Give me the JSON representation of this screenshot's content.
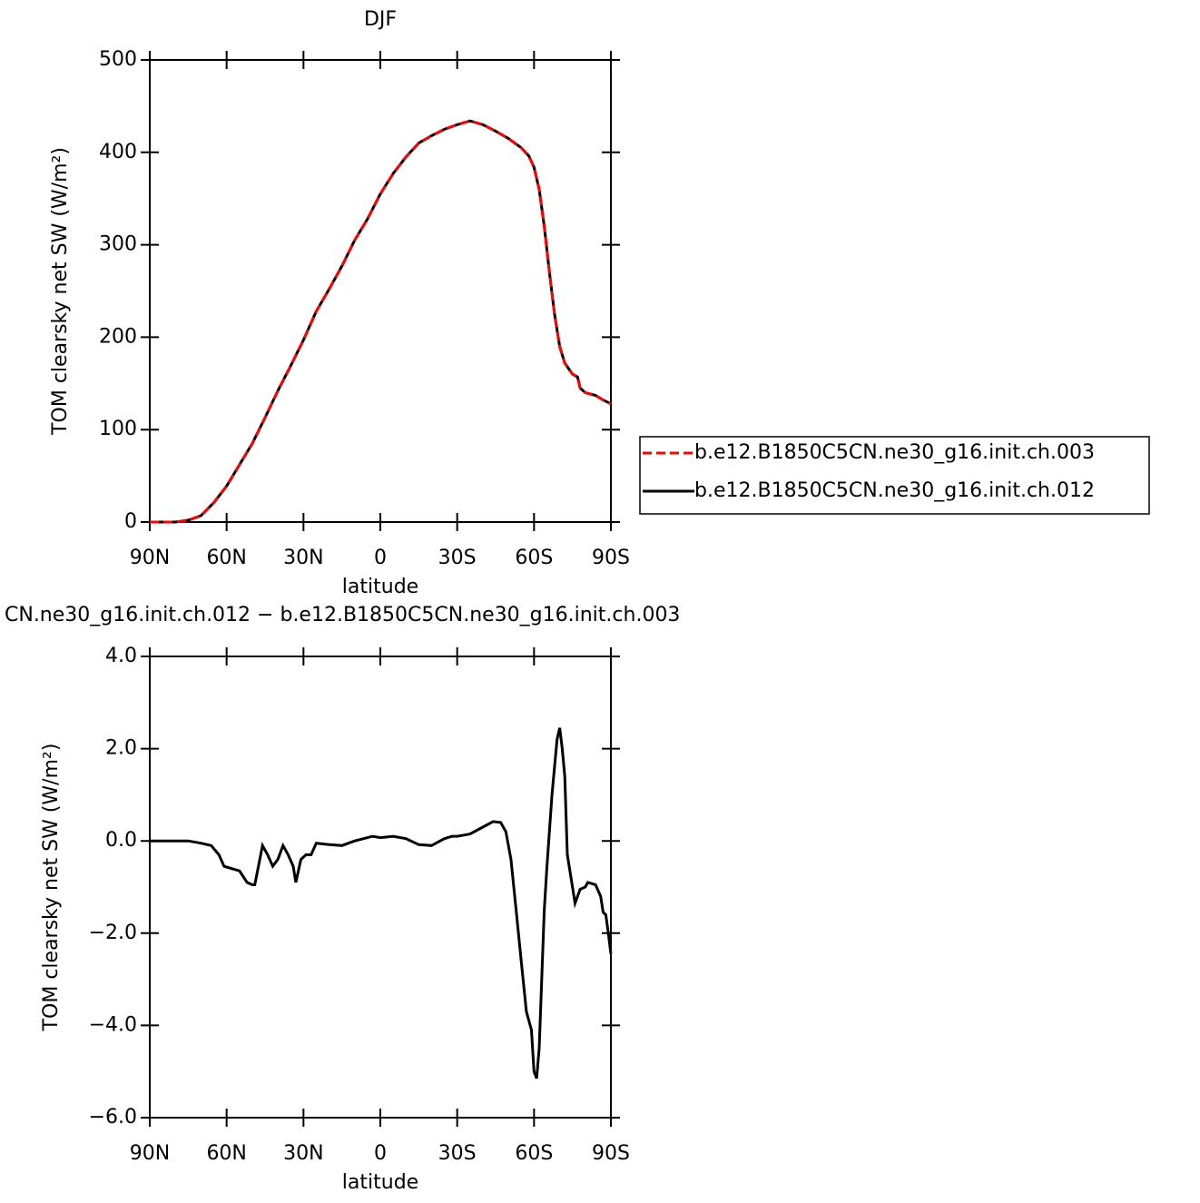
{
  "chart_data": [
    {
      "type": "line",
      "title": "DJF",
      "xlabel": "latitude",
      "ylabel": "TOM clearsky net SW (W/m²)",
      "x": [
        90,
        85,
        80,
        75,
        70,
        65,
        60,
        55,
        50,
        45,
        40,
        35,
        30,
        25,
        20,
        15,
        10,
        5,
        0,
        -5,
        -10,
        -15,
        -20,
        -25,
        -30,
        -35,
        -40,
        -45,
        -50,
        -55,
        -58,
        -60,
        -62,
        -64,
        -66,
        -68,
        -70,
        -72,
        -75,
        -77,
        -78,
        -80,
        -84,
        -87,
        -90
      ],
      "series": [
        {
          "name": "b.e12.B1850C5CN.ne30_g16.init.ch.003",
          "color": "#ff0000",
          "dash": true,
          "values": [
            0,
            0,
            0,
            2,
            7,
            21,
            39,
            62,
            85,
            113,
            142,
            169,
            197,
            228,
            252,
            277,
            305,
            328,
            355,
            377,
            395,
            410,
            418,
            425,
            430,
            434,
            430,
            423,
            415,
            405,
            396,
            384,
            360,
            320,
            270,
            225,
            190,
            172,
            160,
            157,
            145,
            140,
            137,
            132,
            128
          ]
        },
        {
          "name": "b.e12.B1850C5CN.ne30_g16.init.ch.012",
          "color": "#000000",
          "dash": false,
          "values": [
            0,
            0,
            0,
            2,
            7,
            21,
            39,
            62,
            85,
            113,
            142,
            169,
            197,
            228,
            252,
            277,
            305,
            328,
            355,
            377,
            395,
            410,
            418,
            425,
            430,
            434,
            430,
            423,
            415,
            405,
            396,
            384,
            360,
            320,
            270,
            225,
            190,
            172,
            160,
            157,
            145,
            140,
            137,
            132,
            128
          ]
        }
      ],
      "xlim": [
        90,
        -90
      ],
      "xticks": [
        {
          "value": 90,
          "label": "90N"
        },
        {
          "value": 60,
          "label": "60N"
        },
        {
          "value": 30,
          "label": "30N"
        },
        0,
        {
          "value": -30,
          "label": "30S"
        },
        {
          "value": -60,
          "label": "60S"
        },
        {
          "value": -90,
          "label": "90S"
        }
      ],
      "ylim": [
        0,
        500
      ],
      "yticks": [
        0,
        100,
        200,
        300,
        400,
        500
      ],
      "legend": "right"
    },
    {
      "type": "line",
      "title": "CN.ne30_g16.init.ch.012 − b.e12.B1850C5CN.ne30_g16.init.ch.003",
      "xlabel": "latitude",
      "ylabel": "TOM clearsky net SW (W/m²)",
      "x": [
        90,
        80,
        75,
        70,
        66,
        63,
        61,
        58,
        55,
        52,
        50,
        49,
        46,
        44,
        42,
        40,
        38,
        36,
        34,
        33,
        31,
        29,
        27,
        25,
        20,
        15,
        10,
        5,
        3,
        0,
        -5,
        -10,
        -15,
        -20,
        -25,
        -28,
        -30,
        -35,
        -40,
        -44,
        -47,
        -49,
        -51,
        -53,
        -55,
        -57,
        -59,
        -60,
        -61,
        -62,
        -64,
        -65,
        -67,
        -69,
        -70,
        -71,
        -72,
        -73,
        -75,
        -76,
        -78,
        -80,
        -81,
        -84,
        -86,
        -87,
        -88,
        -89,
        -90
      ],
      "series": [
        {
          "color": "#000000",
          "dash": false,
          "values": [
            0,
            0,
            0,
            -0.05,
            -0.1,
            -0.3,
            -0.55,
            -0.6,
            -0.65,
            -0.9,
            -0.95,
            -0.95,
            -0.1,
            -0.3,
            -0.55,
            -0.4,
            -0.1,
            -0.3,
            -0.55,
            -0.9,
            -0.4,
            -0.3,
            -0.3,
            -0.05,
            -0.08,
            -0.1,
            0,
            0.07,
            0.1,
            0.07,
            0.1,
            0.05,
            -0.08,
            -0.1,
            0.05,
            0.1,
            0.1,
            0.15,
            0.3,
            0.42,
            0.4,
            0.2,
            -0.4,
            -1.5,
            -2.6,
            -3.7,
            -4.1,
            -5.0,
            -5.15,
            -4.5,
            -1.5,
            -0.6,
            1.0,
            2.2,
            2.45,
            2.0,
            1.4,
            -0.3,
            -1.0,
            -1.35,
            -1.05,
            -1.0,
            -0.9,
            -0.95,
            -1.2,
            -1.55,
            -1.6,
            -2.0,
            -2.45
          ]
        }
      ],
      "xlim": [
        90,
        -90
      ],
      "xticks": [
        {
          "value": 90,
          "label": "90N"
        },
        {
          "value": 60,
          "label": "60N"
        },
        {
          "value": 30,
          "label": "30N"
        },
        0,
        {
          "value": -30,
          "label": "30S"
        },
        {
          "value": -60,
          "label": "60S"
        },
        {
          "value": -90,
          "label": "90S"
        }
      ],
      "ylim": [
        -6,
        4
      ],
      "yticks": [
        {
          "value": -6,
          "label": "−6.0"
        },
        {
          "value": -4,
          "label": "−4.0"
        },
        {
          "value": -2,
          "label": "−2.0"
        },
        {
          "value": 0,
          "label": "0.0"
        },
        {
          "value": 2,
          "label": "2.0"
        },
        {
          "value": 4,
          "label": "4.0"
        }
      ]
    }
  ]
}
